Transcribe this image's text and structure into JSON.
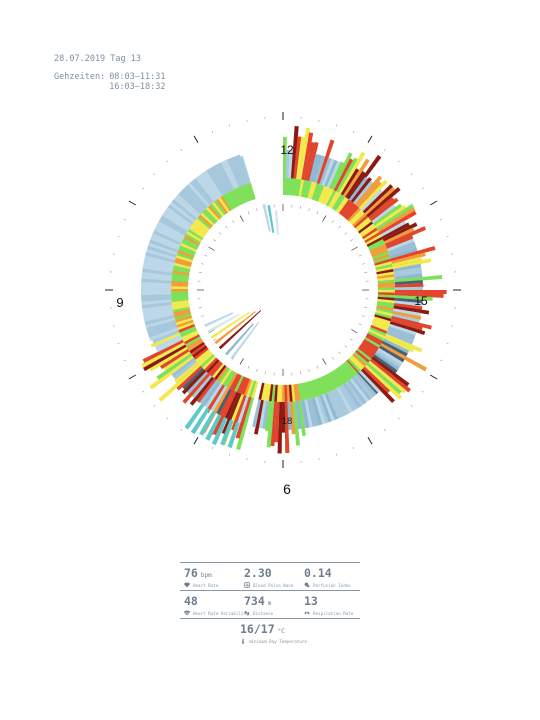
{
  "header": {
    "date_line": "28.07.2019 Tag 13",
    "times_label": "Gehzeiten:",
    "times": [
      "08:03–11:31",
      "16:03–18:32"
    ]
  },
  "clock_labels": {
    "top": "12",
    "right": "15",
    "left": "9",
    "bottom": "6",
    "inner_bottom": "18"
  },
  "chart_data": {
    "type": "radial_bar",
    "description_free": true,
    "hours_per_rotation": 12,
    "rings": [
      {
        "name": "outer",
        "segments": [
          {
            "start": 11.6,
            "end": 12.0,
            "color_base": "#a6c9de"
          },
          {
            "start": 12.0,
            "end": 12.7,
            "color_base": "#9fcbe0"
          },
          {
            "start": 12.7,
            "end": 15.9,
            "color_base": "#a9cadd"
          },
          {
            "start": 15.9,
            "end": 18.6,
            "color_base": "#a9cadd"
          },
          {
            "start": 6.0,
            "end": 11.4,
            "color_base": "#a9cadd"
          }
        ]
      }
    ],
    "walking_periods": [
      "08:03–11:31",
      "16:03–18:32"
    ],
    "palette": {
      "blue_light": "#bcd8e8",
      "blue": "#8fb8d3",
      "slate": "#4a6172",
      "green": "#7fe05a",
      "yellow": "#f2e94e",
      "orange": "#f29c3a",
      "red": "#e2452b",
      "darkred": "#8a1a12",
      "cyan": "#5fc8c8"
    }
  },
  "stats": {
    "rows": [
      [
        {
          "value": "76",
          "unit": "bpm",
          "label": "Heart Rate",
          "icon": "heart-icon"
        },
        {
          "value": "2.30",
          "unit": "",
          "label": "Blood Pulse Wave",
          "icon": "pulse-wave-icon"
        },
        {
          "value": "0.14",
          "unit": "",
          "label": "Perfusion Index",
          "icon": "perfusion-icon"
        }
      ],
      [
        {
          "value": "48",
          "unit": "",
          "label": "Heart Rate Variability",
          "icon": "heart-variability-icon"
        },
        {
          "value": "734",
          "unit": "m",
          "label": "Distance",
          "icon": "footsteps-icon"
        },
        {
          "value": "13",
          "unit": "",
          "label": "Respiration Rate",
          "icon": "lungs-icon"
        }
      ]
    ],
    "temperature": {
      "value": "16/17",
      "unit": "°C",
      "label": "minimum Day Temperature",
      "icon": "thermometer-icon"
    }
  }
}
